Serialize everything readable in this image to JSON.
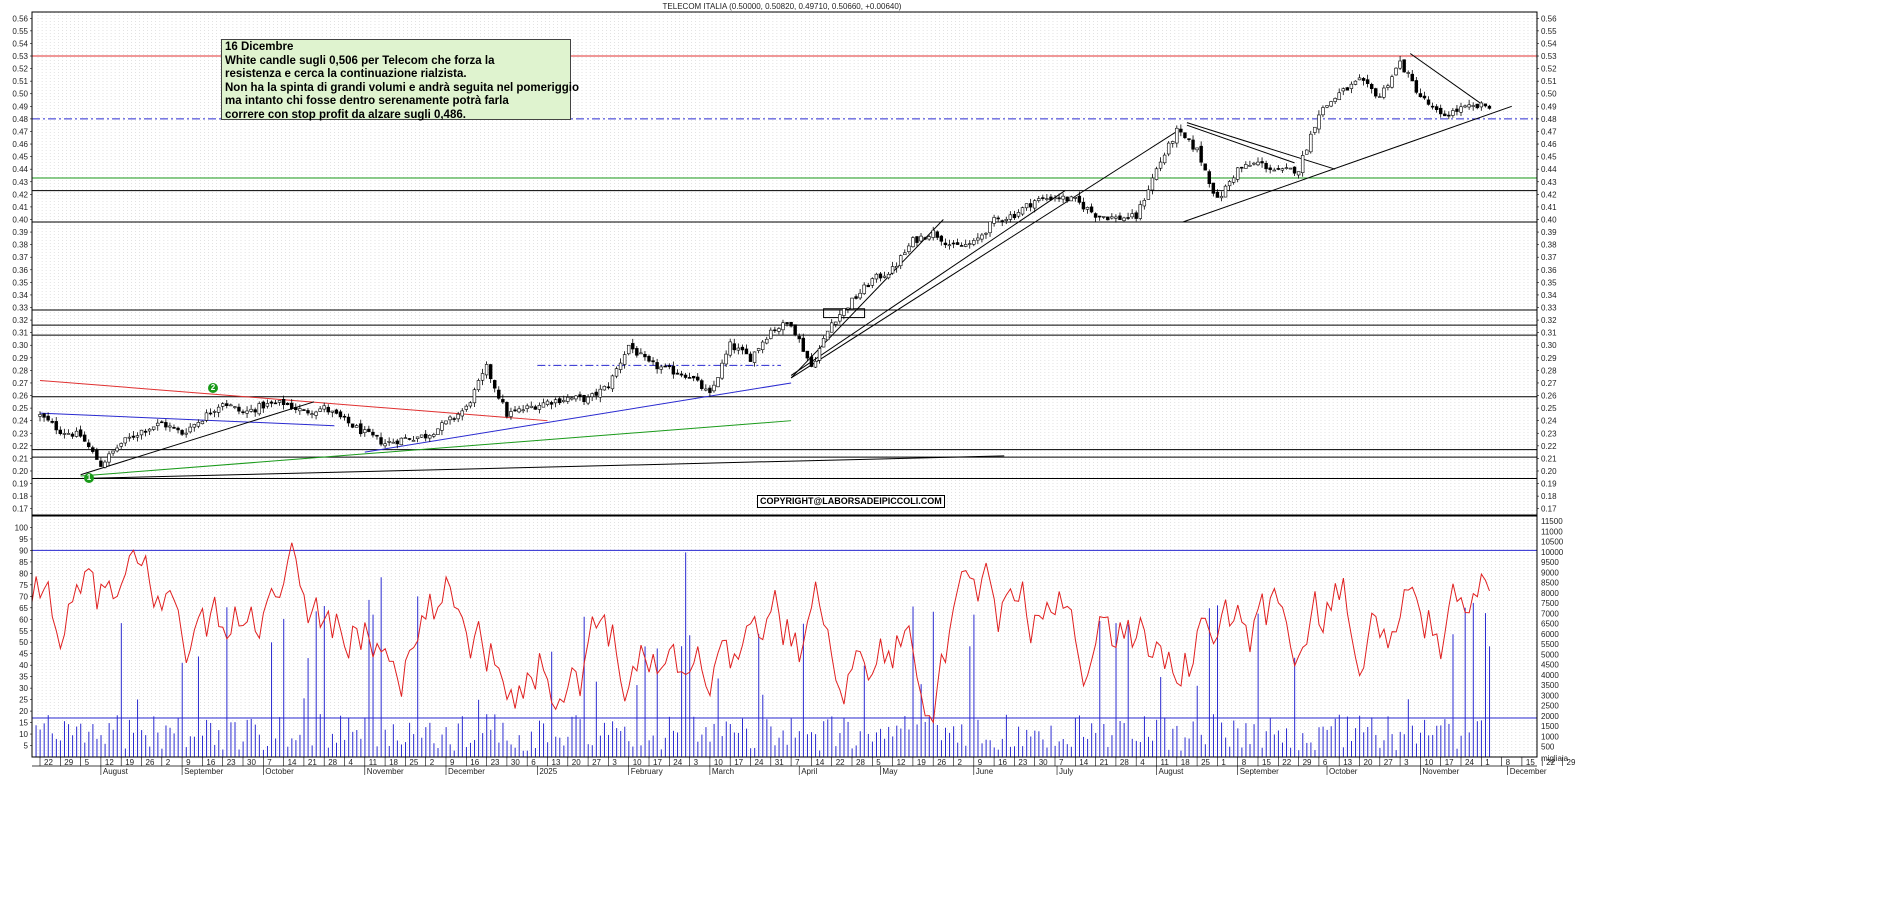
{
  "chart_data": [
    {
      "type": "candlestick",
      "title": "TELECOM ITALIA (0.50000, 0.50820, 0.49710, 0.50660, +0.00640)",
      "ylim": [
        0.165,
        0.565
      ],
      "yticks": [
        0.17,
        0.18,
        0.19,
        0.2,
        0.21,
        0.22,
        0.23,
        0.24,
        0.25,
        0.26,
        0.27,
        0.28,
        0.29,
        0.3,
        0.31,
        0.32,
        0.33,
        0.34,
        0.35,
        0.36,
        0.37,
        0.38,
        0.39,
        0.4,
        0.41,
        0.42,
        0.43,
        0.44,
        0.45,
        0.46,
        0.47,
        0.48,
        0.49,
        0.5,
        0.51,
        0.52,
        0.53,
        0.54,
        0.55,
        0.56
      ],
      "x_dates": [
        "2024-07-15",
        "2024-07-22",
        "2024-07-29",
        "2024-08-05",
        "2024-08-12",
        "2024-08-19",
        "2024-08-26",
        "2024-09-02",
        "2024-09-09",
        "2024-09-16",
        "2024-09-23",
        "2024-09-30",
        "2024-10-07",
        "2024-10-14",
        "2024-10-21",
        "2024-10-28",
        "2024-11-04",
        "2024-11-11",
        "2024-11-18",
        "2024-11-25",
        "2024-12-02",
        "2024-12-09",
        "2024-12-16",
        "2024-12-23",
        "2024-12-30",
        "2025-01-06",
        "2025-01-13",
        "2025-01-20",
        "2025-01-27",
        "2025-02-03",
        "2025-02-10",
        "2025-02-17",
        "2025-02-24",
        "2025-03-03",
        "2025-03-10",
        "2025-03-17",
        "2025-03-24",
        "2025-03-31",
        "2025-04-07",
        "2025-04-14",
        "2025-04-21",
        "2025-04-28",
        "2025-05-05",
        "2025-05-12",
        "2025-05-19",
        "2025-05-26",
        "2025-06-02",
        "2025-06-09",
        "2025-06-16",
        "2025-06-23",
        "2025-06-30",
        "2025-07-07",
        "2025-07-14",
        "2025-07-21",
        "2025-07-28",
        "2025-08-04",
        "2025-08-11",
        "2025-08-18",
        "2025-08-25",
        "2025-09-01",
        "2025-09-08",
        "2025-09-15",
        "2025-09-22",
        "2025-09-29",
        "2025-10-06",
        "2025-10-13",
        "2025-10-20",
        "2025-10-27",
        "2025-11-03",
        "2025-11-10",
        "2025-11-17",
        "2025-11-24",
        "2025-12-01",
        "2025-12-08",
        "2025-12-15"
      ],
      "close_path": [
        0.244,
        0.232,
        0.228,
        0.205,
        0.222,
        0.232,
        0.238,
        0.23,
        0.242,
        0.255,
        0.246,
        0.252,
        0.254,
        0.247,
        0.25,
        0.24,
        0.23,
        0.222,
        0.226,
        0.228,
        0.238,
        0.25,
        0.282,
        0.245,
        0.25,
        0.255,
        0.258,
        0.257,
        0.268,
        0.3,
        0.285,
        0.28,
        0.276,
        0.26,
        0.3,
        0.29,
        0.312,
        0.318,
        0.283,
        0.318,
        0.335,
        0.352,
        0.36,
        0.383,
        0.39,
        0.378,
        0.381,
        0.399,
        0.404,
        0.415,
        0.418,
        0.415,
        0.404,
        0.401,
        0.402,
        0.44,
        0.47,
        0.455,
        0.415,
        0.44,
        0.445,
        0.438,
        0.44,
        0.485,
        0.5,
        0.51,
        0.498,
        0.525,
        0.498,
        0.482,
        0.488,
        0.49,
        0.492,
        0.5,
        0.506
      ],
      "horizontal_levels": [
        {
          "value": 0.53,
          "color": "#e03030",
          "style": "solid"
        },
        {
          "value": 0.48,
          "color": "#2a2ad0",
          "style": "dashdot"
        },
        {
          "value": 0.433,
          "color": "#1a9a1a",
          "style": "solid"
        },
        {
          "value": 0.423,
          "color": "#000000",
          "style": "solid"
        },
        {
          "value": 0.398,
          "color": "#000000",
          "style": "solid"
        },
        {
          "value": 0.328,
          "color": "#000000",
          "style": "solid"
        },
        {
          "value": 0.316,
          "color": "#000000",
          "style": "solid"
        },
        {
          "value": 0.308,
          "color": "#000000",
          "style": "solid"
        },
        {
          "value": 0.259,
          "color": "#000000",
          "style": "solid"
        },
        {
          "value": 0.217,
          "color": "#000000",
          "style": "solid"
        },
        {
          "value": 0.211,
          "color": "#000000",
          "style": "solid"
        },
        {
          "value": 0.194,
          "color": "#000000",
          "style": "solid"
        }
      ],
      "annotation": {
        "lines": [
          "16 Dicembre",
          "White candle sugli 0,506 per Telecom che forza la",
          "resistenza e cerca la continuazione rialzista.",
          "Non ha la spinta di grandi volumi e andrà seguita nel pomeriggio",
          "ma intanto chi fosse dentro serenamente potrà farla",
          "correre con stop profit  da alzare sugli 0,486."
        ]
      },
      "copyright": "COPYRIGHT@LABORSADEIPICCOLI.COM",
      "markers": [
        "1",
        "2"
      ]
    },
    {
      "type": "oscillator_volume",
      "left_ylim": [
        0,
        105
      ],
      "left_yticks": [
        5,
        10,
        15,
        20,
        25,
        30,
        35,
        40,
        45,
        50,
        55,
        60,
        65,
        70,
        75,
        80,
        85,
        90,
        95,
        100
      ],
      "right_ylim": [
        0,
        11750
      ],
      "right_yticks": [
        500,
        1000,
        1500,
        2000,
        2500,
        3000,
        3500,
        4000,
        4500,
        5000,
        5500,
        6000,
        6500,
        7000,
        7500,
        8000,
        8500,
        9000,
        9500,
        10000,
        10500,
        11000,
        11500
      ],
      "levels": [
        {
          "value": 90,
          "color": "#2a2ad0"
        },
        {
          "value": 17,
          "color": "#2a2ad0"
        }
      ],
      "right_axis_label": "migliaia"
    }
  ],
  "x_axis": {
    "day_ticks": [
      "22",
      "29",
      "5",
      "12",
      "19",
      "26",
      "2",
      "9",
      "16",
      "23",
      "30",
      "7",
      "14",
      "21",
      "28",
      "4",
      "11",
      "18",
      "25",
      "2",
      "9",
      "16",
      "23",
      "30",
      "6",
      "13",
      "20",
      "27",
      "3",
      "10",
      "17",
      "24",
      "3",
      "10",
      "17",
      "24",
      "31",
      "7",
      "14",
      "22",
      "28",
      "5",
      "12",
      "19",
      "26",
      "2",
      "9",
      "16",
      "23",
      "30",
      "7",
      "14",
      "21",
      "28",
      "4",
      "11",
      "18",
      "25",
      "1",
      "8",
      "15",
      "22",
      "29",
      "6",
      "13",
      "20",
      "27",
      "3",
      "10",
      "17",
      "24",
      "1",
      "8",
      "15",
      "22",
      "29"
    ],
    "months": [
      {
        "label": "August",
        "week": 3
      },
      {
        "label": "September",
        "week": 7
      },
      {
        "label": "October",
        "week": 11
      },
      {
        "label": "November",
        "week": 16
      },
      {
        "label": "December",
        "week": 20
      },
      {
        "label": "2025",
        "week": 24.5
      },
      {
        "label": "February",
        "week": 29
      },
      {
        "label": "March",
        "week": 33
      },
      {
        "label": "April",
        "week": 37.4
      },
      {
        "label": "May",
        "week": 41.4
      },
      {
        "label": "June",
        "week": 46
      },
      {
        "label": "July",
        "week": 50.1
      },
      {
        "label": "August",
        "week": 55
      },
      {
        "label": "September",
        "week": 59
      },
      {
        "label": "October",
        "week": 63.4
      },
      {
        "label": "November",
        "week": 68
      },
      {
        "label": "December",
        "week": 72.3
      }
    ]
  }
}
